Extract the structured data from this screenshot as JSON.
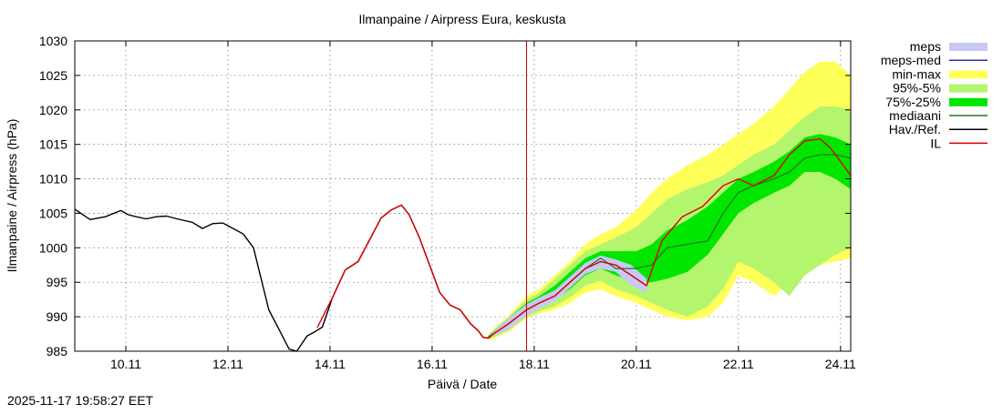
{
  "colors": {
    "meps": "#c8c8f4",
    "meps_med": "#3030a0",
    "minmax": "#ffff5a",
    "p95_5": "#b4f56e",
    "p75_25": "#00e600",
    "mediaani": "#1e781e",
    "obs": "#000000",
    "il": "#dc0000",
    "now_line": "#c80000"
  },
  "chart_data": {
    "type": "line",
    "title": "Ilmanpaine / Airpress Eura, keskusta",
    "xlabel": "Päivä / Date",
    "ylabel": "Ilmanpaine / Airpress (hPa)",
    "xlim": [
      0,
      15.2
    ],
    "ylim": [
      985,
      1030
    ],
    "x_unit": "days since 2025-11-09 00:00",
    "grid": true,
    "legend_position": "outside-right",
    "x_ticks": [
      {
        "x": 1,
        "label": "10.11"
      },
      {
        "x": 3,
        "label": "12.11"
      },
      {
        "x": 5,
        "label": "14.11"
      },
      {
        "x": 7,
        "label": "16.11"
      },
      {
        "x": 9,
        "label": "18.11"
      },
      {
        "x": 11,
        "label": "20.11"
      },
      {
        "x": 13,
        "label": "22.11"
      },
      {
        "x": 15,
        "label": "24.11"
      }
    ],
    "y_ticks": [
      985,
      990,
      995,
      1000,
      1005,
      1010,
      1015,
      1020,
      1025,
      1030
    ],
    "now_x": 8.85,
    "legend": [
      {
        "key": "meps",
        "label": "meps",
        "style": "band"
      },
      {
        "key": "meps_med",
        "label": "meps-med",
        "style": "line"
      },
      {
        "key": "minmax",
        "label": "min-max",
        "style": "band"
      },
      {
        "key": "p95_5",
        "label": "95%-5%",
        "style": "band"
      },
      {
        "key": "p75_25",
        "label": "75%-25%",
        "style": "band"
      },
      {
        "key": "mediaani",
        "label": "mediaani",
        "style": "line"
      },
      {
        "key": "obs",
        "label": "Hav./Ref.",
        "style": "line"
      },
      {
        "key": "il",
        "label": "IL",
        "style": "line"
      }
    ],
    "timestamp": "2025-11-17 19:58:27 EET",
    "series": {
      "observed": {
        "name": "Hav./Ref.",
        "x": [
          0,
          0.3,
          0.6,
          0.9,
          1.05,
          1.2,
          1.4,
          1.6,
          1.8,
          2.0,
          2.3,
          2.5,
          2.7,
          2.9,
          3.0,
          3.2,
          3.3,
          3.5,
          3.8,
          4.0,
          4.2,
          4.35,
          4.55,
          4.7,
          4.85,
          5.05,
          5.3,
          5.55,
          5.8,
          6.0,
          6.2,
          6.4,
          6.55,
          6.75,
          6.95,
          7.15,
          7.35,
          7.55,
          7.75,
          7.9,
          8.0,
          8.1
        ],
        "y": [
          1005.6,
          1004.1,
          1004.5,
          1005.4,
          1004.8,
          1004.5,
          1004.2,
          1004.5,
          1004.6,
          1004.2,
          1003.7,
          1002.8,
          1003.5,
          1003.6,
          1003.2,
          1002.4,
          1002.0,
          1000.0,
          991.0,
          988.2,
          985.3,
          985.0,
          987.2,
          987.8,
          988.5,
          992.8,
          996.8,
          998.0,
          1001.5,
          1004.3,
          1005.5,
          1006.2,
          1004.8,
          1001.5,
          997.5,
          993.5,
          991.7,
          991.0,
          989.0,
          988.0,
          987.0,
          986.9
        ]
      },
      "il": {
        "name": "IL",
        "x": [
          4.75,
          5.05,
          5.3,
          5.55,
          5.8,
          6.0,
          6.2,
          6.4,
          6.55,
          6.75,
          6.95,
          7.15,
          7.35,
          7.55,
          7.75,
          7.9,
          8.0,
          8.1,
          8.2,
          8.5,
          8.85,
          9.1,
          9.4,
          9.7,
          10.0,
          10.3,
          10.6,
          10.9,
          11.2,
          11.5,
          11.9,
          12.3,
          12.7,
          13.0,
          13.3,
          13.7,
          14.0,
          14.3,
          14.6,
          14.8,
          15.0,
          15.2
        ],
        "y": [
          988.4,
          992.8,
          996.8,
          998.0,
          1001.5,
          1004.3,
          1005.5,
          1006.2,
          1004.8,
          1001.5,
          997.5,
          993.5,
          991.7,
          991.0,
          989.0,
          988.0,
          987.0,
          986.9,
          987.5,
          989.0,
          991.0,
          992.0,
          993.0,
          995.0,
          997.0,
          998.0,
          997.5,
          996.0,
          994.5,
          1001.0,
          1004.5,
          1006.0,
          1009.0,
          1010.0,
          1009.0,
          1010.5,
          1013.5,
          1015.5,
          1015.8,
          1014.5,
          1012.5,
          1010.5
        ]
      },
      "meps_med": {
        "name": "meps-med",
        "x": [
          8.1,
          8.5,
          8.85,
          9.1,
          9.4,
          9.7,
          10.0,
          10.3,
          10.6,
          10.9,
          11.2
        ],
        "y": [
          987.0,
          989.0,
          991.0,
          992.0,
          993.0,
          995.0,
          997.0,
          998.0,
          997.5,
          996.0,
          994.5
        ]
      },
      "mediaani": {
        "name": "mediaani",
        "x": [
          8.1,
          8.5,
          8.85,
          9.1,
          9.4,
          9.7,
          10.0,
          10.3,
          10.6,
          11.0,
          11.3,
          11.6,
          12.0,
          12.4,
          12.7,
          13.0,
          13.3,
          13.7,
          14.0,
          14.3,
          14.6,
          14.9,
          15.2
        ],
        "y": [
          987.0,
          989.0,
          991.0,
          992.0,
          993.0,
          995.0,
          997.0,
          998.5,
          997.0,
          997.0,
          997.5,
          1000.0,
          1000.5,
          1001.0,
          1005.0,
          1008.0,
          1009.0,
          1010.0,
          1011.0,
          1013.0,
          1013.5,
          1013.5,
          1013.0
        ]
      },
      "meps_band": {
        "name": "meps",
        "x": [
          8.1,
          8.5,
          8.85,
          9.1,
          9.4,
          9.7,
          10.0,
          10.3,
          10.6,
          10.9,
          11.2
        ],
        "lo": [
          986.9,
          988.2,
          990.2,
          991.2,
          992.2,
          994.2,
          996.2,
          997.0,
          996.5,
          994.5,
          993.5
        ],
        "hi": [
          987.1,
          989.8,
          991.8,
          992.8,
          993.8,
          995.8,
          997.8,
          998.9,
          998.3,
          997.5,
          995.5
        ]
      },
      "p75_25": {
        "name": "75%-25%",
        "x": [
          8.1,
          8.5,
          8.85,
          9.1,
          9.4,
          9.7,
          10.0,
          10.3,
          10.6,
          11.0,
          11.3,
          11.6,
          12.0,
          12.4,
          12.7,
          13.0,
          13.3,
          13.7,
          14.0,
          14.3,
          14.6,
          14.9,
          15.2
        ],
        "lo": [
          986.8,
          988.5,
          990.5,
          991.5,
          992.5,
          994.0,
          996.0,
          997.0,
          996.0,
          995.0,
          995.0,
          995.5,
          996.5,
          999.0,
          1002.0,
          1005.0,
          1006.5,
          1008.0,
          1009.0,
          1011.0,
          1011.0,
          1010.0,
          1008.5
        ],
        "hi": [
          987.2,
          989.8,
          992.0,
          993.0,
          994.5,
          996.5,
          998.5,
          999.5,
          999.5,
          999.5,
          1000.5,
          1002.5,
          1004.0,
          1006.0,
          1008.0,
          1010.0,
          1011.0,
          1012.5,
          1014.0,
          1016.0,
          1016.5,
          1016.0,
          1015.0
        ]
      },
      "p95_5": {
        "name": "95%-5%",
        "x": [
          8.1,
          8.5,
          8.85,
          9.1,
          9.4,
          9.7,
          10.0,
          10.3,
          10.6,
          11.0,
          11.3,
          11.6,
          12.0,
          12.4,
          12.7,
          13.0,
          13.3,
          13.7,
          14.0,
          14.3,
          14.6,
          14.9,
          15.2
        ],
        "lo": [
          986.7,
          988.0,
          990.0,
          990.8,
          991.5,
          992.8,
          994.5,
          995.2,
          994.0,
          993.0,
          992.0,
          991.0,
          990.0,
          991.5,
          994.0,
          998.0,
          997.0,
          995.0,
          993.0,
          996.0,
          997.5,
          999.0,
          1000.0
        ],
        "hi": [
          987.3,
          990.0,
          992.5,
          993.5,
          995.5,
          997.5,
          999.5,
          1000.5,
          1001.5,
          1003.0,
          1005.0,
          1007.0,
          1008.5,
          1009.5,
          1010.5,
          1012.0,
          1013.5,
          1015.0,
          1017.0,
          1019.0,
          1020.5,
          1020.5,
          1020.0
        ]
      },
      "minmax": {
        "name": "min-max",
        "x": [
          8.1,
          8.5,
          8.85,
          9.1,
          9.4,
          9.7,
          10.0,
          10.3,
          10.6,
          11.0,
          11.3,
          11.6,
          12.0,
          12.4,
          12.7,
          13.0,
          13.3,
          13.7,
          14.0,
          14.3,
          14.6,
          14.9,
          15.2
        ],
        "lo": [
          986.5,
          987.8,
          989.8,
          990.5,
          991.0,
          992.0,
          993.5,
          994.0,
          993.0,
          992.0,
          991.0,
          990.0,
          989.5,
          990.0,
          992.0,
          996.0,
          995.0,
          993.0,
          995.0,
          997.0,
          997.5,
          998.0,
          998.5
        ],
        "hi": [
          987.5,
          990.2,
          993.0,
          994.0,
          996.0,
          998.0,
          1000.5,
          1002.0,
          1003.0,
          1005.5,
          1008.0,
          1010.0,
          1012.0,
          1013.5,
          1015.0,
          1016.5,
          1018.0,
          1020.5,
          1023.0,
          1025.5,
          1027.0,
          1027.0,
          1025.0
        ]
      }
    }
  }
}
